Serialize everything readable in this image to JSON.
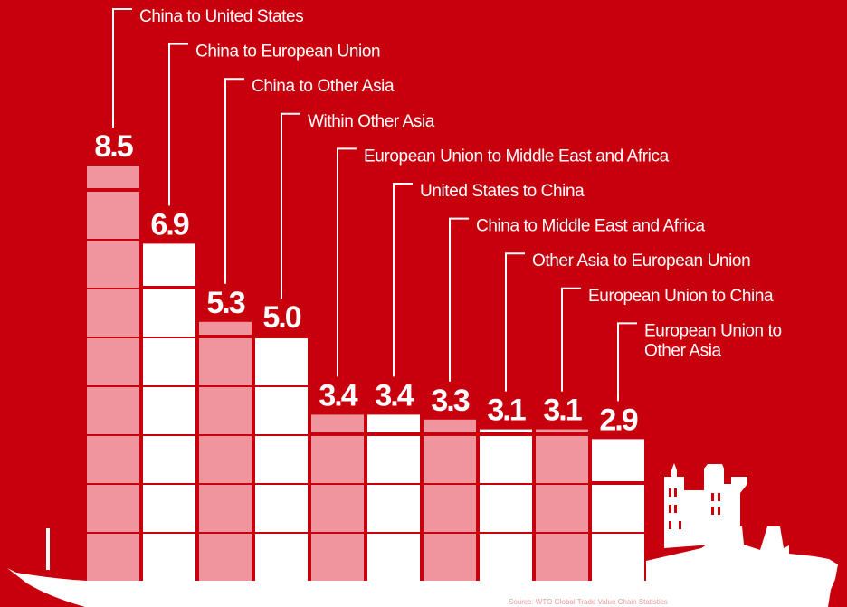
{
  "chart_data": {
    "type": "bar",
    "categories": [
      "China to United States",
      "China to European Union",
      "China to Other Asia",
      "Within Other Asia",
      "European Union to Middle East and Africa",
      "United States to China",
      "China to Middle East and Africa",
      "Other Asia to European Union",
      "European Union to China",
      "European Union to Other Asia"
    ],
    "values": [
      8.5,
      6.9,
      5.3,
      5.0,
      3.4,
      3.4,
      3.3,
      3.1,
      3.1,
      2.9
    ],
    "value_labels": [
      "8.5",
      "6.9",
      "5.3",
      "5.0",
      "3.4",
      "3.4",
      "3.3",
      "3.1",
      "3.1",
      "2.9"
    ],
    "label_lines": [
      [
        "China to United States"
      ],
      [
        "China to European Union"
      ],
      [
        "China to Other Asia"
      ],
      [
        "Within Other Asia"
      ],
      [
        "European Union to Middle East and Africa"
      ],
      [
        "United States to China"
      ],
      [
        "China to Middle East and Africa"
      ],
      [
        "Other Asia to European Union"
      ],
      [
        "European Union to China"
      ],
      [
        "European Union to",
        "Other Asia"
      ]
    ],
    "ylim": [
      0,
      8.5
    ],
    "grid": false,
    "colors": {
      "background": "#c8000e",
      "bar_white": "#ffffff",
      "bar_pink": "#f0959d",
      "ship": "#ffffff"
    }
  },
  "footer": {
    "source": "Source: WTO Global Trade Value Chain Statistics"
  }
}
